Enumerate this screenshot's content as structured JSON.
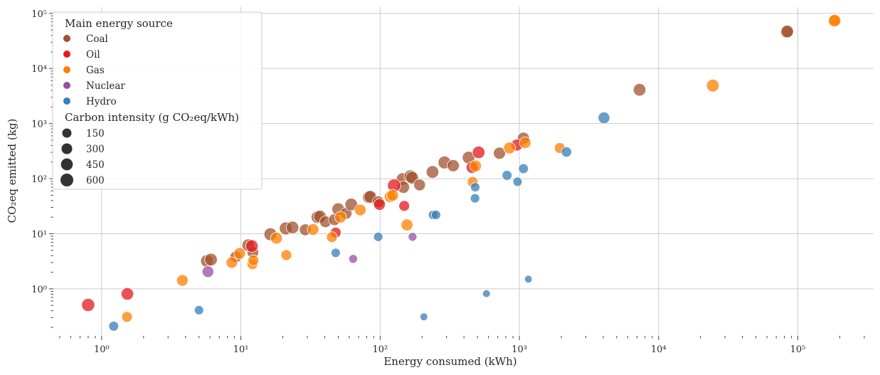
{
  "chart_data": {
    "type": "scatter",
    "title": "",
    "xlabel": "Energy consumed (kWh)",
    "ylabel": "CO₂eq emitted (kg)",
    "xscale": "log",
    "yscale": "log",
    "xlim": [
      0.45,
      350000
    ],
    "ylim": [
      0.14,
      130000
    ],
    "grid": true,
    "x_ticks": [
      {
        "value": 1,
        "label": "10⁰"
      },
      {
        "value": 10,
        "label": "10¹"
      },
      {
        "value": 100,
        "label": "10²"
      },
      {
        "value": 1000,
        "label": "10³"
      },
      {
        "value": 10000,
        "label": "10⁴"
      },
      {
        "value": 100000,
        "label": "10⁵"
      }
    ],
    "y_ticks": [
      {
        "value": 1,
        "label": "10⁰"
      },
      {
        "value": 10,
        "label": "10¹"
      },
      {
        "value": 100,
        "label": "10²"
      },
      {
        "value": 1000,
        "label": "10³"
      },
      {
        "value": 10000,
        "label": "10⁴"
      },
      {
        "value": 100000,
        "label": "10⁵"
      }
    ],
    "legend": {
      "position": "top-left",
      "hue_title": "Main energy source",
      "hue_entries": [
        {
          "name": "Coal",
          "color": "#a0522d"
        },
        {
          "name": "Oil",
          "color": "#e31a1c"
        },
        {
          "name": "Gas",
          "color": "#ff7f00"
        },
        {
          "name": "Nuclear",
          "color": "#984ea3"
        },
        {
          "name": "Hydro",
          "color": "#377eb8"
        }
      ],
      "size_title": "Carbon intensity (g CO₂eq/kWh)",
      "size_entries": [
        {
          "label": "150",
          "value": 150
        },
        {
          "label": "300",
          "value": 300
        },
        {
          "label": "450",
          "value": 450
        },
        {
          "label": "600",
          "value": 600
        }
      ]
    },
    "series": [
      {
        "name": "Coal",
        "color": "#a0522d",
        "points": [
          {
            "x": 5.7,
            "y": 3.2,
            "s": 560
          },
          {
            "x": 6.1,
            "y": 3.4,
            "s": 560
          },
          {
            "x": 9.2,
            "y": 3.8,
            "s": 420
          },
          {
            "x": 11.3,
            "y": 6.2,
            "s": 560
          },
          {
            "x": 12.2,
            "y": 4.6,
            "s": 400
          },
          {
            "x": 16.3,
            "y": 9.8,
            "s": 600
          },
          {
            "x": 21.0,
            "y": 12.5,
            "s": 600
          },
          {
            "x": 23.5,
            "y": 13.0,
            "s": 560
          },
          {
            "x": 29.0,
            "y": 11.8,
            "s": 420
          },
          {
            "x": 35.5,
            "y": 20.0,
            "s": 560
          },
          {
            "x": 37.0,
            "y": 20.5,
            "s": 560
          },
          {
            "x": 40.5,
            "y": 16.5,
            "s": 420
          },
          {
            "x": 47.0,
            "y": 18.0,
            "s": 420
          },
          {
            "x": 50.0,
            "y": 28.0,
            "s": 560
          },
          {
            "x": 57.0,
            "y": 23.5,
            "s": 420
          },
          {
            "x": 62.0,
            "y": 34.0,
            "s": 560
          },
          {
            "x": 83.0,
            "y": 46.0,
            "s": 560
          },
          {
            "x": 85.0,
            "y": 47.0,
            "s": 560
          },
          {
            "x": 97.0,
            "y": 38.0,
            "s": 420
          },
          {
            "x": 145.0,
            "y": 98.0,
            "s": 560
          },
          {
            "x": 147.0,
            "y": 70.0,
            "s": 480
          },
          {
            "x": 165.0,
            "y": 110.0,
            "s": 600
          },
          {
            "x": 170.0,
            "y": 104.0,
            "s": 560
          },
          {
            "x": 192.0,
            "y": 77.0,
            "s": 420
          },
          {
            "x": 238.0,
            "y": 132.0,
            "s": 560
          },
          {
            "x": 290.0,
            "y": 197.0,
            "s": 600
          },
          {
            "x": 335.0,
            "y": 172.0,
            "s": 480
          },
          {
            "x": 432.0,
            "y": 242.0,
            "s": 560
          },
          {
            "x": 720.0,
            "y": 290.0,
            "s": 480
          },
          {
            "x": 1070.0,
            "y": 540.0,
            "s": 480
          },
          {
            "x": 7300.0,
            "y": 4100.0,
            "s": 560
          },
          {
            "x": 83000.0,
            "y": 46000.0,
            "s": 560
          },
          {
            "x": 84000.0,
            "y": 47000.0,
            "s": 520
          }
        ]
      },
      {
        "name": "Oil",
        "color": "#e31a1c",
        "points": [
          {
            "x": 0.8,
            "y": 0.51,
            "s": 640
          },
          {
            "x": 1.53,
            "y": 0.81,
            "s": 540
          },
          {
            "x": 12.0,
            "y": 6.0,
            "s": 520
          },
          {
            "x": 48.0,
            "y": 10.5,
            "s": 300
          },
          {
            "x": 99.0,
            "y": 34.0,
            "s": 420
          },
          {
            "x": 126.0,
            "y": 75.0,
            "s": 650
          },
          {
            "x": 149.0,
            "y": 32.0,
            "s": 300
          },
          {
            "x": 457.0,
            "y": 160.0,
            "s": 420
          },
          {
            "x": 510.0,
            "y": 300.0,
            "s": 560
          },
          {
            "x": 960.0,
            "y": 408.0,
            "s": 450
          }
        ]
      },
      {
        "name": "Gas",
        "color": "#ff7f00",
        "points": [
          {
            "x": 1.52,
            "y": 0.31,
            "s": 300
          },
          {
            "x": 3.8,
            "y": 1.42,
            "s": 400
          },
          {
            "x": 8.6,
            "y": 3.0,
            "s": 380
          },
          {
            "x": 9.8,
            "y": 4.4,
            "s": 400
          },
          {
            "x": 12.1,
            "y": 2.8,
            "s": 300
          },
          {
            "x": 12.3,
            "y": 3.3,
            "s": 300
          },
          {
            "x": 18.0,
            "y": 8.3,
            "s": 450
          },
          {
            "x": 21.2,
            "y": 4.1,
            "s": 300
          },
          {
            "x": 33.0,
            "y": 12.0,
            "s": 400
          },
          {
            "x": 45.0,
            "y": 8.7,
            "s": 300
          },
          {
            "x": 52.0,
            "y": 20.0,
            "s": 420
          },
          {
            "x": 72.0,
            "y": 27.0,
            "s": 400
          },
          {
            "x": 118.0,
            "y": 47.0,
            "s": 420
          },
          {
            "x": 123.0,
            "y": 50.0,
            "s": 420
          },
          {
            "x": 156.0,
            "y": 14.5,
            "s": 450
          },
          {
            "x": 462.0,
            "y": 87.0,
            "s": 300
          },
          {
            "x": 485.0,
            "y": 170.0,
            "s": 420
          },
          {
            "x": 850.0,
            "y": 360.0,
            "s": 450
          },
          {
            "x": 1100.0,
            "y": 450.0,
            "s": 400
          },
          {
            "x": 1950.0,
            "y": 360.0,
            "s": 300
          },
          {
            "x": 24500.0,
            "y": 4900.0,
            "s": 580
          },
          {
            "x": 182000.0,
            "y": 73000.0,
            "s": 500
          },
          {
            "x": 184000.0,
            "y": 74000.0,
            "s": 480
          }
        ]
      },
      {
        "name": "Nuclear",
        "color": "#984ea3",
        "points": [
          {
            "x": 5.8,
            "y": 2.05,
            "s": 400
          },
          {
            "x": 64.0,
            "y": 3.5,
            "s": 110
          },
          {
            "x": 171.0,
            "y": 8.8,
            "s": 110
          }
        ]
      },
      {
        "name": "Hydro",
        "color": "#377eb8",
        "points": [
          {
            "x": 1.22,
            "y": 0.21,
            "s": 200
          },
          {
            "x": 5.0,
            "y": 0.41,
            "s": 150
          },
          {
            "x": 48.0,
            "y": 4.5,
            "s": 150
          },
          {
            "x": 97.0,
            "y": 8.8,
            "s": 150
          },
          {
            "x": 206.0,
            "y": 0.31,
            "s": 50
          },
          {
            "x": 240.0,
            "y": 22.0,
            "s": 150
          },
          {
            "x": 252.0,
            "y": 22.0,
            "s": 150
          },
          {
            "x": 480.0,
            "y": 44.0,
            "s": 150
          },
          {
            "x": 482.0,
            "y": 70.0,
            "s": 150
          },
          {
            "x": 580.0,
            "y": 0.82,
            "s": 50
          },
          {
            "x": 815.0,
            "y": 115.0,
            "s": 200
          },
          {
            "x": 970.0,
            "y": 88.0,
            "s": 150
          },
          {
            "x": 1070.0,
            "y": 152.0,
            "s": 200
          },
          {
            "x": 1160.0,
            "y": 1.5,
            "s": 50
          },
          {
            "x": 2180.0,
            "y": 305.0,
            "s": 250
          },
          {
            "x": 4050.0,
            "y": 1270.0,
            "s": 420
          }
        ]
      }
    ]
  }
}
